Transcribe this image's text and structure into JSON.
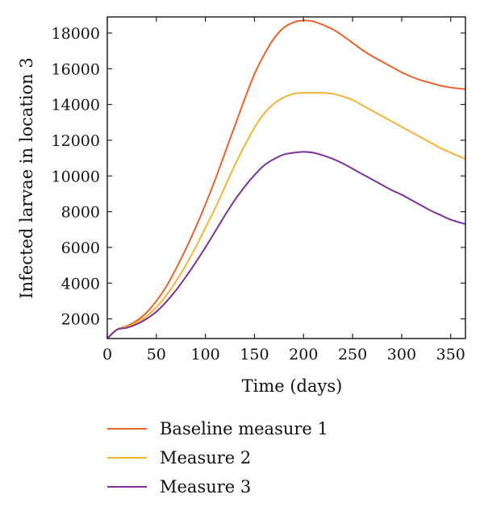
{
  "chart_data": {
    "type": "line",
    "title": "",
    "xlabel": "Time (days)",
    "ylabel": "Infected larvae in location 3",
    "xlim": [
      0,
      365
    ],
    "ylim": [
      900,
      18900
    ],
    "xticks": [
      0,
      50,
      100,
      150,
      200,
      250,
      300,
      350
    ],
    "yticks": [
      2000,
      4000,
      6000,
      8000,
      10000,
      12000,
      14000,
      16000,
      18000
    ],
    "grid": false,
    "legend_position": "bottom",
    "series": [
      {
        "name": "Baseline measure 1",
        "color": "#e8622c",
        "x": [
          0,
          10,
          20,
          30,
          40,
          50,
          60,
          70,
          80,
          90,
          100,
          110,
          120,
          130,
          140,
          150,
          160,
          170,
          180,
          190,
          200,
          210,
          220,
          230,
          240,
          250,
          260,
          270,
          280,
          290,
          300,
          310,
          320,
          330,
          340,
          350,
          365
        ],
        "y": [
          900,
          1400,
          1600,
          1900,
          2350,
          3000,
          3800,
          4800,
          5900,
          7100,
          8400,
          9800,
          11300,
          12800,
          14300,
          15700,
          16800,
          17700,
          18300,
          18600,
          18700,
          18650,
          18450,
          18200,
          17850,
          17450,
          17050,
          16700,
          16400,
          16100,
          15800,
          15550,
          15350,
          15200,
          15050,
          14950,
          14850
        ]
      },
      {
        "name": "Measure 2",
        "color": "#f2b437",
        "x": [
          0,
          10,
          20,
          30,
          40,
          50,
          60,
          70,
          80,
          90,
          100,
          110,
          120,
          130,
          140,
          150,
          160,
          170,
          180,
          190,
          200,
          210,
          220,
          230,
          240,
          250,
          260,
          270,
          280,
          290,
          300,
          310,
          320,
          330,
          340,
          350,
          365
        ],
        "y": [
          900,
          1400,
          1550,
          1800,
          2150,
          2650,
          3300,
          4100,
          5000,
          6000,
          7100,
          8200,
          9400,
          10600,
          11700,
          12700,
          13500,
          14050,
          14400,
          14600,
          14650,
          14650,
          14650,
          14600,
          14450,
          14250,
          13950,
          13650,
          13350,
          13050,
          12750,
          12450,
          12150,
          11850,
          11550,
          11300,
          10950
        ]
      },
      {
        "name": "Measure 3",
        "color": "#7b3294",
        "x": [
          0,
          10,
          20,
          30,
          40,
          50,
          60,
          70,
          80,
          90,
          100,
          110,
          120,
          130,
          140,
          150,
          160,
          170,
          180,
          190,
          200,
          210,
          220,
          230,
          240,
          250,
          260,
          270,
          280,
          290,
          300,
          310,
          320,
          330,
          340,
          350,
          365
        ],
        "y": [
          900,
          1400,
          1500,
          1700,
          2000,
          2400,
          2950,
          3600,
          4350,
          5150,
          6000,
          6900,
          7800,
          8650,
          9400,
          10050,
          10600,
          10950,
          11200,
          11300,
          11350,
          11300,
          11150,
          10950,
          10700,
          10400,
          10100,
          9800,
          9500,
          9200,
          8950,
          8650,
          8350,
          8050,
          7800,
          7550,
          7300
        ]
      }
    ]
  }
}
